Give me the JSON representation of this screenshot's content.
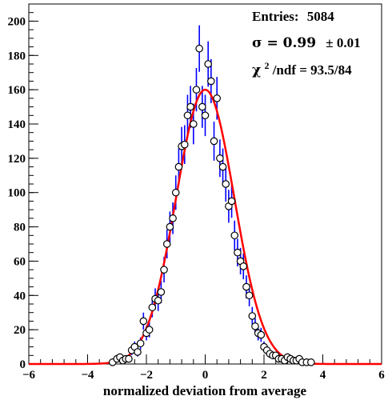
{
  "chart_data": {
    "type": "scatter",
    "xlabel": "normalized deviation from average",
    "ylabel": "",
    "xlim": [
      -6,
      6
    ],
    "ylim": [
      0,
      210
    ],
    "x_ticks": [
      -6,
      -4,
      -2,
      0,
      2,
      4,
      6
    ],
    "y_ticks": [
      0,
      20,
      40,
      60,
      80,
      100,
      120,
      140,
      160,
      180,
      200
    ],
    "grid": false,
    "stats": {
      "entries_label": "Entries:",
      "entries_value": "5084",
      "sigma_label": "σ = 0.99",
      "sigma_err": "± 0.01",
      "chi2_label": "χ",
      "chi2_sup": "2",
      "chi2_rest": "/ndf = 93.5/84"
    },
    "fit": {
      "function": "gaussian",
      "amplitude": 160,
      "mean": 0,
      "sigma": 0.99,
      "color": "#ff0000"
    },
    "marker_color": "#000000",
    "error_color": "#0000ff",
    "points": {
      "x": [
        -3.15,
        -3.0,
        -2.9,
        -2.8,
        -2.7,
        -2.6,
        -2.5,
        -2.4,
        -2.3,
        -2.2,
        -2.1,
        -2.0,
        -1.9,
        -1.8,
        -1.7,
        -1.6,
        -1.5,
        -1.4,
        -1.3,
        -1.2,
        -1.1,
        -1.0,
        -0.9,
        -0.8,
        -0.7,
        -0.6,
        -0.5,
        -0.4,
        -0.3,
        -0.2,
        -0.1,
        0.0,
        0.1,
        0.2,
        0.3,
        0.4,
        0.5,
        0.6,
        0.7,
        0.8,
        0.9,
        1.0,
        1.1,
        1.2,
        1.3,
        1.4,
        1.5,
        1.6,
        1.7,
        1.8,
        1.9,
        2.0,
        2.1,
        2.2,
        2.3,
        2.4,
        2.5,
        2.6,
        2.7,
        2.8,
        2.9,
        3.0,
        3.1,
        3.2,
        3.3,
        3.45,
        3.6
      ],
      "y": [
        1,
        3,
        4,
        2,
        3,
        3,
        8,
        10,
        7,
        12,
        25,
        18,
        20,
        33,
        38,
        37,
        42,
        55,
        70,
        80,
        85,
        100,
        115,
        127,
        128,
        145,
        150,
        140,
        160,
        184,
        150,
        145,
        175,
        165,
        130,
        155,
        120,
        115,
        105,
        92,
        95,
        75,
        65,
        60,
        57,
        45,
        40,
        28,
        22,
        18,
        17,
        10,
        8,
        6,
        5,
        5,
        3,
        3,
        2,
        4,
        3,
        2,
        2,
        3,
        1,
        1,
        1
      ]
    }
  }
}
